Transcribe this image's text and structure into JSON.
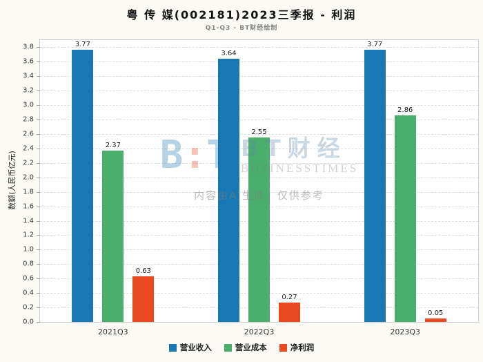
{
  "chart_data": {
    "type": "bar",
    "title": "粤 传 媒(002181)2023三季报 - 利润",
    "subtitle": "Q1-Q3 - BT财经绘制",
    "categories": [
      "2021Q3",
      "2022Q3",
      "2023Q3"
    ],
    "series": [
      {
        "name": "营业收入",
        "color": "#1878b4",
        "values": [
          3.77,
          3.64,
          3.77
        ]
      },
      {
        "name": "营业成本",
        "color": "#4aaf6c",
        "values": [
          2.37,
          2.55,
          2.86
        ]
      },
      {
        "name": "净利润",
        "color": "#e8491f",
        "values": [
          0.63,
          0.27,
          0.05
        ]
      }
    ],
    "xlabel": "",
    "ylabel": "数额(人民币亿元)",
    "ylim": [
      0,
      3.8
    ],
    "ytick_step": 0.2,
    "scale_max": 3.9,
    "grid": "horizontal dashed",
    "legend_position": "bottom",
    "bar_value_labels": true
  },
  "watermark": {
    "logo_b": "B",
    "logo_colon": ":",
    "logo_t": "T",
    "brand": "BT财经",
    "brand_sub": "BUSINESSTIMES",
    "ai_note": "内容由AI生成，仅供参考"
  }
}
